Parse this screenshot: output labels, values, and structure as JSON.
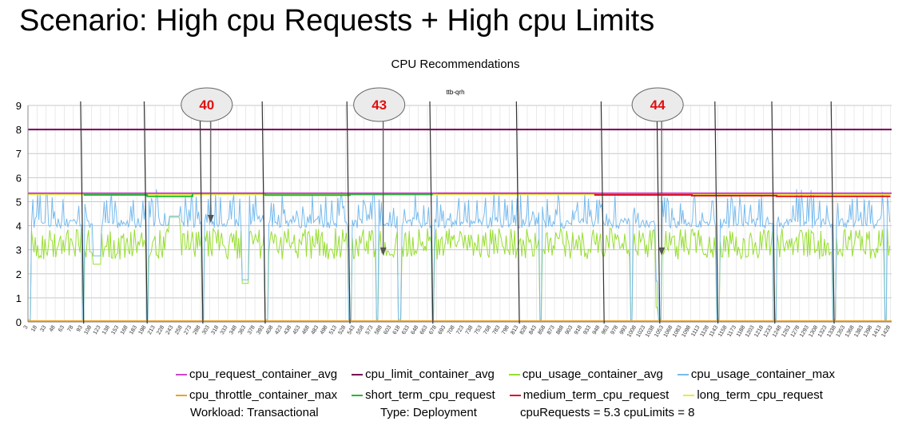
{
  "slide_title": "Scenario: High cpu Requests + High cpu Limits",
  "chart_data": {
    "type": "line",
    "title": "CPU Recommendations",
    "subtitle": "ttb-qrh",
    "ylim": [
      0,
      9
    ],
    "yticks": [
      0,
      1,
      2,
      3,
      4,
      5,
      6,
      7,
      8,
      9
    ],
    "xticks": [
      3,
      18,
      33,
      48,
      63,
      78,
      93,
      108,
      123,
      138,
      153,
      168,
      183,
      198,
      213,
      228,
      243,
      258,
      273,
      288,
      303,
      318,
      333,
      348,
      363,
      378,
      393,
      408,
      423,
      438,
      453,
      468,
      483,
      498,
      513,
      528,
      543,
      558,
      573,
      588,
      603,
      618,
      633,
      648,
      663,
      678,
      693,
      708,
      723,
      738,
      753,
      768,
      783,
      798,
      813,
      828,
      843,
      858,
      873,
      888,
      903,
      918,
      933,
      948,
      963,
      978,
      993,
      1008,
      1023,
      1038,
      1053,
      1068,
      1083,
      1098,
      1113,
      1128,
      1143,
      1158,
      1173,
      1188,
      1203,
      1218,
      1233,
      1248,
      1263,
      1278,
      1293,
      1308,
      1323,
      1338,
      1353,
      1368,
      1383,
      1398,
      1413,
      1428
    ],
    "x_range": [
      3,
      1430
    ],
    "grid": "horizontal",
    "legend_position": "bottom",
    "series": [
      {
        "name": "cpu_request_container_avg",
        "color": "#cc44cc",
        "values": [
          [
            3,
            5.35
          ],
          [
            1430,
            5.35
          ]
        ]
      },
      {
        "name": "cpu_limit_container_avg",
        "color": "#7a0055",
        "values": [
          [
            3,
            8.0
          ],
          [
            1430,
            8.0
          ]
        ]
      },
      {
        "name": "cpu_usage_container_avg",
        "color": "#99dd33",
        "values": "typical 2.5-4.3 oscillating, dips to 0 at window boundaries"
      },
      {
        "name": "cpu_usage_container_max",
        "color": "#77bbee",
        "values": "typical 3.8-5.3 oscillating, dips to 0 at window boundaries"
      },
      {
        "name": "cpu_throttle_container_max",
        "color": "#f0a020",
        "values": [
          [
            3,
            0.0
          ],
          [
            1430,
            0.0
          ]
        ]
      },
      {
        "name": "short_term_cpu_request",
        "color": "#22bb33",
        "values": [
          [
            95,
            5.3
          ],
          [
            275,
            5.35
          ],
          [
            395,
            5.25
          ],
          [
            670,
            5.3
          ]
        ]
      },
      {
        "name": "medium_term_cpu_request",
        "color": "#dd1122",
        "values": [
          [
            680,
            5.35
          ],
          [
            940,
            5.3
          ],
          [
            1430,
            5.25
          ]
        ]
      },
      {
        "name": "long_term_cpu_request",
        "color": "#e6ee33",
        "values": [
          [
            3,
            5.3
          ],
          [
            1430,
            5.3
          ]
        ]
      }
    ],
    "annotations": [
      {
        "label": "40",
        "x": 305,
        "y": 4.15
      },
      {
        "label": "43",
        "x": 590,
        "y": 2.8
      },
      {
        "label": "44",
        "x": 1050,
        "y": 2.8
      }
    ]
  },
  "legend_rows": [
    [
      {
        "name": "cpu_request_container_avg",
        "color": "#cc44cc"
      },
      {
        "name": "cpu_limit_container_avg",
        "color": "#7a0055"
      },
      {
        "name": "cpu_usage_container_avg",
        "color": "#99dd33"
      },
      {
        "name": "cpu_usage_container_max",
        "color": "#77bbee"
      }
    ],
    [
      {
        "name": "cpu_throttle_container_max",
        "color": "#f0a020"
      },
      {
        "name": "short_term_cpu_request",
        "color": "#22bb33"
      },
      {
        "name": "medium_term_cpu_request",
        "color": "#dd1122"
      },
      {
        "name": "long_term_cpu_request",
        "color": "#e6ee33"
      }
    ]
  ],
  "footer": {
    "workload": "Workload: Transactional",
    "type": "Type: Deployment",
    "requests_limits": "cpuRequests = 5.3  cpuLimits = 8"
  }
}
